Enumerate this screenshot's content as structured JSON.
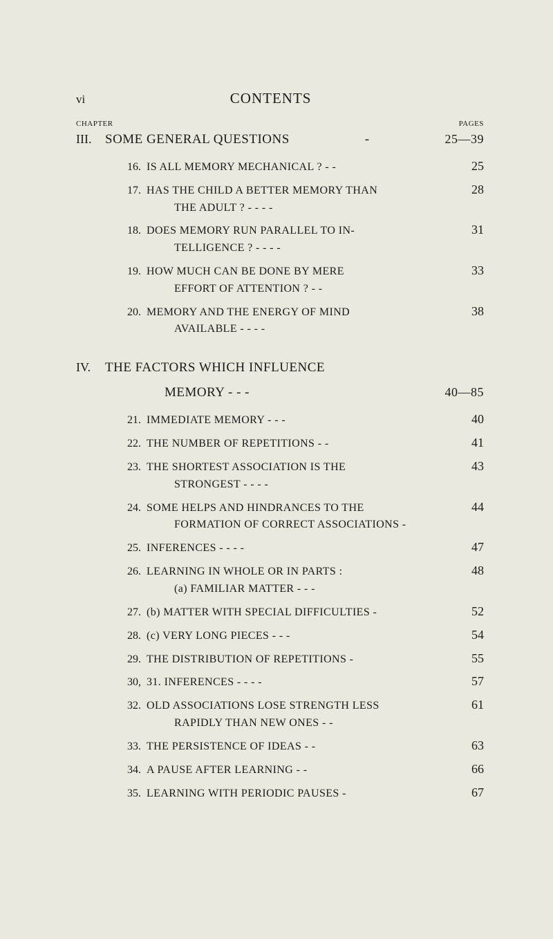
{
  "page_number_roman": "vi",
  "contents_heading": "CONTENTS",
  "column_headers": {
    "left": "CHAPTER",
    "right": "PAGES"
  },
  "chapters": [
    {
      "numeral": "III.",
      "title": "SOME GENERAL QUESTIONS",
      "page_range": "25—39",
      "items": [
        {
          "num": "16.",
          "text": "IS ALL MEMORY MECHANICAL ?   -   -",
          "page": "25"
        },
        {
          "num": "17.",
          "text": "HAS THE CHILD A BETTER MEMORY THAN",
          "cont": "THE ADULT ?   -   -   -   -",
          "page": "28"
        },
        {
          "num": "18.",
          "text": "DOES MEMORY RUN PARALLEL TO IN-",
          "cont": "TELLIGENCE ?   -   -   -   -",
          "page": "31"
        },
        {
          "num": "19.",
          "text": "HOW MUCH CAN BE DONE BY MERE",
          "cont": "EFFORT OF ATTENTION ?   -   -",
          "page": "33"
        },
        {
          "num": "20.",
          "text": "MEMORY AND THE ENERGY OF MIND",
          "cont": "AVAILABLE   -   -   -   -",
          "page": "38"
        }
      ]
    },
    {
      "numeral": "IV.",
      "title": "THE FACTORS WHICH INFLUENCE",
      "title_cont": "MEMORY   -   -   -",
      "page_range": "40—85",
      "items": [
        {
          "num": "21.",
          "text": "IMMEDIATE MEMORY   -   -   -",
          "page": "40"
        },
        {
          "num": "22.",
          "text": "THE NUMBER OF REPETITIONS   -   -",
          "page": "41"
        },
        {
          "num": "23.",
          "text": "THE SHORTEST ASSOCIATION IS THE",
          "cont": "STRONGEST   -   -   -   -",
          "page": "43"
        },
        {
          "num": "24.",
          "text": "SOME HELPS AND HINDRANCES TO THE",
          "cont": "FORMATION OF CORRECT ASSOCIATIONS -",
          "page": "44"
        },
        {
          "num": "25.",
          "text": "INFERENCES   -   -   -   -",
          "page": "47"
        },
        {
          "num": "26.",
          "text": "LEARNING IN WHOLE OR IN PARTS :",
          "cont": "(a) FAMILIAR MATTER -   -   -",
          "page": "48"
        },
        {
          "num": "27.",
          "text": "(b) MATTER WITH SPECIAL DIFFICULTIES -",
          "page": "52"
        },
        {
          "num": "28.",
          "text": "(c) VERY LONG PIECES   -   -   -",
          "page": "54"
        },
        {
          "num": "29.",
          "text": "THE DISTRIBUTION OF REPETITIONS   -",
          "page": "55"
        },
        {
          "num": "30,",
          "text": "31. INFERENCES   -   -   -   -",
          "page": "57"
        },
        {
          "num": "32.",
          "text": "OLD ASSOCIATIONS LOSE STRENGTH LESS",
          "cont": "RAPIDLY THAN NEW ONES   -   -",
          "page": "61"
        },
        {
          "num": "33.",
          "text": "THE PERSISTENCE OF IDEAS   -   -",
          "page": "63"
        },
        {
          "num": "34.",
          "text": "A PAUSE AFTER LEARNING   -   -",
          "page": "66"
        },
        {
          "num": "35.",
          "text": "LEARNING WITH PERIODIC PAUSES   -",
          "page": "67"
        }
      ]
    }
  ]
}
